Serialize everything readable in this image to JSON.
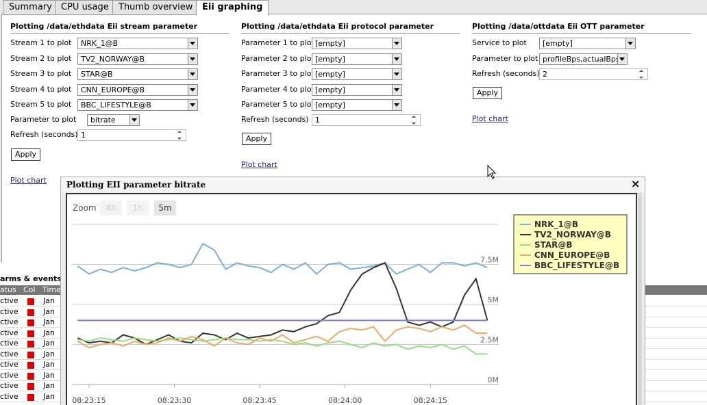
{
  "tabs": [
    "Summary",
    "CPU usage",
    "Thumb overview",
    "Eii graphing"
  ],
  "panels": [
    {
      "title": "Plotting /data/ethdata Eii stream parameter",
      "fields": [
        {
          "label": "Stream 1 to plot",
          "value": "NRK_1@B"
        },
        {
          "label": "Stream 2 to plot",
          "value": "TV2_NORWAY@B"
        },
        {
          "label": "Stream 3 to plot",
          "value": "STAR@B"
        },
        {
          "label": "Stream 4 to plot",
          "value": "CNN_EUROPE@B"
        },
        {
          "label": "Stream 5 to plot",
          "value": "BBC_LIFESTYLE@B"
        },
        {
          "label": "Parameter to plot",
          "value": "bitrate"
        },
        {
          "label": "Refresh (seconds)",
          "value": "1"
        }
      ],
      "button": "Apply",
      "link": "Plot chart"
    },
    {
      "title": "Plotting /data/ethdata Eii protocol parameter",
      "fields": [
        {
          "label": "Parameter 1 to plot",
          "value": "[empty]"
        },
        {
          "label": "Parameter 2 to plot",
          "value": "[empty]"
        },
        {
          "label": "Parameter 3 to plot",
          "value": "[empty]"
        },
        {
          "label": "Parameter 4 to plot",
          "value": "[empty]"
        },
        {
          "label": "Parameter 5 to plot",
          "value": "[empty]"
        },
        {
          "label": "Refresh (seconds)",
          "value": "1"
        }
      ],
      "button": "Apply",
      "link": "Plot chart"
    },
    {
      "title": "Plotting /data/ottdata Eii OTT parameter",
      "fields": [
        {
          "label": "Service to plot",
          "value": "[empty]"
        },
        {
          "label": "Parameter to plot",
          "value": "profileBps,actualBps"
        },
        {
          "label": "Refresh (seconds)",
          "value": "2"
        }
      ],
      "button": "Apply",
      "link": "Plot chart"
    }
  ],
  "alarms": {
    "title": "arms & events",
    "headers": [
      "atus",
      "Col",
      "Time"
    ],
    "rows": [
      {
        "status": "ctive",
        "time": "Jan"
      },
      {
        "status": "ctive",
        "time": "Jan"
      },
      {
        "status": "ctive",
        "time": "Jan"
      },
      {
        "status": "ctive",
        "time": "Jan"
      },
      {
        "status": "ctive",
        "time": "Jan"
      },
      {
        "status": "ctive",
        "time": "Jan"
      },
      {
        "status": "ctive",
        "time": "Jan"
      },
      {
        "status": "ctive",
        "time": "Jan"
      },
      {
        "status": "ctive",
        "time": "Jan"
      },
      {
        "status": "ctive",
        "time": "Jan"
      }
    ]
  },
  "dialog": {
    "title": "Plotting EII parameter bitrate",
    "close": "×",
    "zoom": {
      "label": "Zoom",
      "options": [
        "4h",
        "1h",
        "5m"
      ]
    }
  },
  "chart_data": {
    "type": "line",
    "x": [
      "08:23:13",
      "08:23:15",
      "08:23:17",
      "08:23:19",
      "08:23:21",
      "08:23:23",
      "08:23:25",
      "08:23:27",
      "08:23:29",
      "08:23:31",
      "08:23:33",
      "08:23:35",
      "08:23:37",
      "08:23:39",
      "08:23:41",
      "08:23:43",
      "08:23:45",
      "08:23:47",
      "08:23:49",
      "08:23:51",
      "08:23:53",
      "08:23:55",
      "08:23:57",
      "08:23:59",
      "08:24:01",
      "08:24:03",
      "08:24:05",
      "08:24:07",
      "08:24:09",
      "08:24:11",
      "08:24:13",
      "08:24:15",
      "08:24:17",
      "08:24:19",
      "08:24:21",
      "08:24:23",
      "08:24:25"
    ],
    "xlim": [
      "08:23:12",
      "08:24:27"
    ],
    "xticks": [
      "08:23:15",
      "08:23:30",
      "08:23:45",
      "08:24:00",
      "08:24:15"
    ],
    "ylim": [
      0,
      10
    ],
    "yticks": [
      {
        "value": 0,
        "label": "0M"
      },
      {
        "value": 2.5,
        "label": "2.5M"
      },
      {
        "value": 5,
        "label": "5M"
      },
      {
        "value": 7.5,
        "label": "7.5M"
      }
    ],
    "grid": true,
    "legend": "top-right",
    "series": [
      {
        "name": "NRK_1@B",
        "color": "#7aaedc",
        "values": [
          7.4,
          6.9,
          7.2,
          7.0,
          7.3,
          7.1,
          7.3,
          7.6,
          7.5,
          7.3,
          7.5,
          8.8,
          8.4,
          7.2,
          7.6,
          7.4,
          7.3,
          7.0,
          7.5,
          7.2,
          7.6,
          6.9,
          7.5,
          7.6,
          7.2,
          7.3,
          7.4,
          7.6,
          6.9,
          7.2,
          7.5,
          7.0,
          7.6,
          7.6,
          7.4,
          7.6,
          7.3
        ]
      },
      {
        "name": "TV2_NORWAY@B",
        "color": "#333333",
        "values": [
          2.9,
          2.6,
          2.7,
          2.6,
          3.1,
          2.9,
          2.5,
          2.8,
          3.1,
          2.7,
          2.6,
          3.2,
          3.1,
          2.8,
          3.2,
          2.9,
          3.0,
          3.1,
          3.4,
          3.3,
          3.6,
          3.8,
          4.3,
          4.5,
          5.9,
          6.9,
          7.3,
          7.6,
          6.0,
          3.9,
          3.7,
          3.9,
          3.6,
          3.9,
          5.6,
          6.6,
          4.0
        ]
      },
      {
        "name": "STAR@B",
        "color": "#90e080",
        "values": [
          2.8,
          2.7,
          2.9,
          2.8,
          2.7,
          2.9,
          2.8,
          2.7,
          2.8,
          2.9,
          2.8,
          2.7,
          2.8,
          2.9,
          2.8,
          2.8,
          2.7,
          2.8,
          2.7,
          2.5,
          2.6,
          2.4,
          2.6,
          2.7,
          2.5,
          2.3,
          2.6,
          2.4,
          2.5,
          2.2,
          2.4,
          2.3,
          2.5,
          2.2,
          2.4,
          1.9,
          1.9
        ]
      },
      {
        "name": "CNN_EUROPE@B",
        "color": "#f0a860",
        "values": [
          2.7,
          2.3,
          2.5,
          2.6,
          2.4,
          2.7,
          2.5,
          2.6,
          2.9,
          2.7,
          3.0,
          2.8,
          2.4,
          2.9,
          2.6,
          2.5,
          2.9,
          2.7,
          3.1,
          2.6,
          2.8,
          3.0,
          2.7,
          3.3,
          3.5,
          3.4,
          3.6,
          2.7,
          3.4,
          3.6,
          3.5,
          3.3,
          3.6,
          3.4,
          3.7,
          3.2,
          3.2
        ]
      },
      {
        "name": "BBC_LIFESTYLE@B",
        "color": "#7a7ae0",
        "values": [
          4.0,
          4.0,
          4.0,
          4.0,
          4.0,
          4.0,
          4.0,
          4.0,
          4.0,
          4.0,
          4.0,
          4.0,
          4.0,
          4.0,
          4.0,
          4.0,
          4.0,
          4.0,
          4.0,
          4.0,
          4.0,
          4.0,
          4.0,
          4.0,
          4.0,
          4.0,
          4.0,
          4.0,
          4.0,
          4.0,
          4.0,
          4.0,
          4.0,
          4.0,
          4.0,
          4.0,
          4.0
        ]
      }
    ]
  }
}
